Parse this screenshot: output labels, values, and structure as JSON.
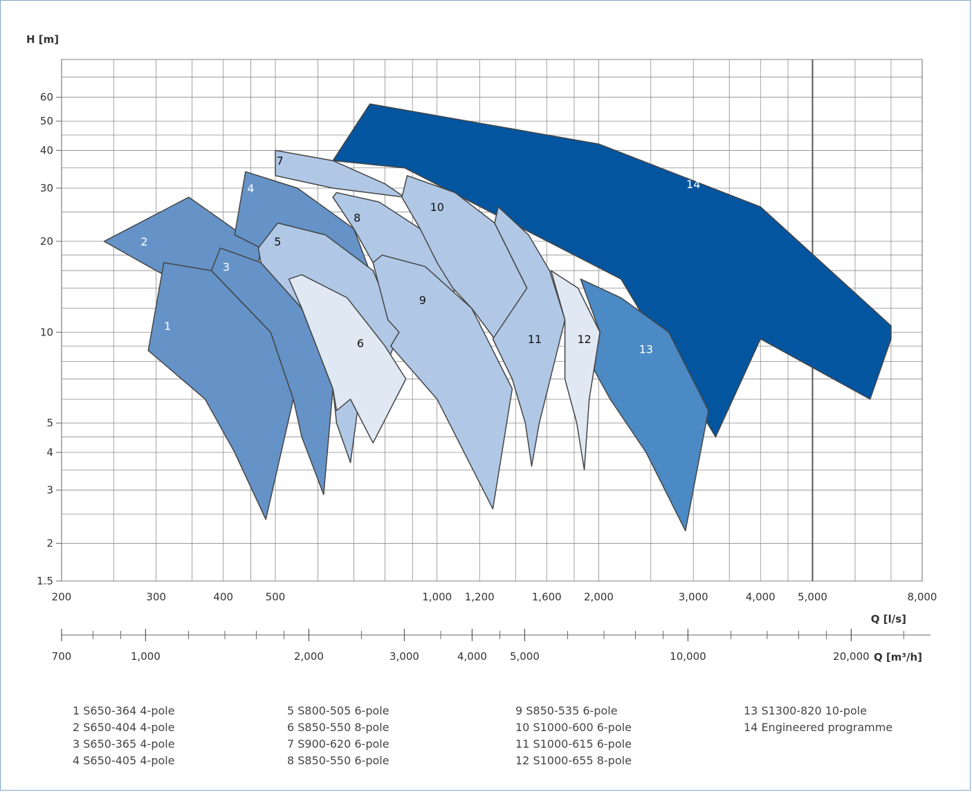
{
  "chart_data": {
    "type": "area",
    "ylabel": "H [m]",
    "xlabel": "Q [l/s]",
    "x2label": "Q [m³/h]",
    "x_scale": "log",
    "y_scale": "log",
    "xlim": [
      200,
      8000
    ],
    "ylim": [
      1.5,
      80
    ],
    "grid": true,
    "y_ticks": [
      {
        "value": 1.5,
        "label": "1.5"
      },
      {
        "value": 2,
        "label": "2"
      },
      {
        "value": 3,
        "label": "3"
      },
      {
        "value": 4,
        "label": "4"
      },
      {
        "value": 5,
        "label": "5"
      },
      {
        "value": 10,
        "label": "10"
      },
      {
        "value": 20,
        "label": "20"
      },
      {
        "value": 30,
        "label": "30"
      },
      {
        "value": 40,
        "label": "40"
      },
      {
        "value": 50,
        "label": "50"
      },
      {
        "value": 60,
        "label": "60"
      }
    ],
    "y_grid": [
      1.5,
      2,
      2.5,
      3,
      3.5,
      4,
      4.5,
      5,
      6,
      7,
      8,
      9,
      10,
      12,
      14,
      16,
      18,
      20,
      25,
      30,
      35,
      40,
      45,
      50,
      60,
      70,
      80
    ],
    "x_ticks": [
      {
        "value": 200,
        "label": "200"
      },
      {
        "value": 300,
        "label": "300"
      },
      {
        "value": 400,
        "label": "400"
      },
      {
        "value": 500,
        "label": "500"
      },
      {
        "value": 1000,
        "label": "1,000"
      },
      {
        "value": 1200,
        "label": "1,200"
      },
      {
        "value": 1600,
        "label": "1,600"
      },
      {
        "value": 2000,
        "label": "2,000"
      },
      {
        "value": 3000,
        "label": "3,000"
      },
      {
        "value": 4000,
        "label": "4,000"
      },
      {
        "value": 5000,
        "label": "5,000"
      },
      {
        "value": 8000,
        "label": "8,000"
      }
    ],
    "x_grid": [
      250,
      300,
      350,
      400,
      450,
      500,
      600,
      700,
      800,
      900,
      1000,
      1200,
      1400,
      1600,
      1800,
      2000,
      2500,
      3000,
      3500,
      4000,
      4500,
      5000,
      6000,
      7000
    ],
    "x2_ticks": [
      {
        "value": 700,
        "label": "700"
      },
      {
        "value": 1000,
        "label": "1,000"
      },
      {
        "value": 2000,
        "label": "2,000"
      },
      {
        "value": 3000,
        "label": "3,000"
      },
      {
        "value": 4000,
        "label": "4,000"
      },
      {
        "value": 5000,
        "label": "5,000"
      },
      {
        "value": 10000,
        "label": "10,000"
      },
      {
        "value": 20000,
        "label": "20,000"
      }
    ],
    "x2_minor": [
      700,
      800,
      900,
      1000,
      1200,
      1400,
      1600,
      1800,
      2000,
      2500,
      3000,
      3500,
      4000,
      4500,
      5000,
      6000,
      7000,
      8000,
      9000,
      10000,
      12000,
      14000,
      16000,
      18000,
      20000,
      25000
    ],
    "colors": {
      "dark_blue": "#04559f",
      "mid_blue": "#6593c8",
      "steel_blue": "#4b8ac4",
      "light_blue": "#b0c8e6",
      "pale_blue": "#dfe8f3",
      "outline": "#444444"
    },
    "regions": [
      {
        "id": "14",
        "color": "dark_blue",
        "label_color": "#ffffff",
        "label_at": [
          3000,
          31
        ],
        "points": [
          [
            750,
            57
          ],
          [
            2000,
            42
          ],
          [
            4000,
            26
          ],
          [
            7000,
            10.5
          ],
          [
            7000,
            9.5
          ],
          [
            6400,
            6
          ],
          [
            4000,
            9.5
          ],
          [
            3300,
            4.5
          ],
          [
            2200,
            15
          ],
          [
            870,
            35
          ],
          [
            640,
            37
          ]
        ]
      },
      {
        "id": "2",
        "color": "mid_blue",
        "label_color": "#ffffff",
        "label_at": [
          285,
          20
        ],
        "points": [
          [
            240,
            20
          ],
          [
            345,
            28
          ],
          [
            470,
            19
          ],
          [
            460,
            15
          ],
          [
            345,
            14
          ],
          [
            300,
            16
          ]
        ]
      },
      {
        "id": "1",
        "color": "mid_blue",
        "label_color": "#ffffff",
        "label_at": [
          315,
          10.5
        ],
        "points": [
          [
            310,
            17
          ],
          [
            380,
            16
          ],
          [
            490,
            10
          ],
          [
            540,
            6
          ],
          [
            480,
            2.4
          ],
          [
            420,
            4
          ],
          [
            370,
            6
          ],
          [
            290,
            8.7
          ]
        ]
      },
      {
        "id": "3",
        "color": "mid_blue",
        "label_color": "#ffffff",
        "label_at": [
          405,
          16.5
        ],
        "points": [
          [
            395,
            19
          ],
          [
            470,
            17
          ],
          [
            560,
            12
          ],
          [
            640,
            6.5
          ],
          [
            615,
            2.9
          ],
          [
            560,
            4.5
          ],
          [
            540,
            6
          ],
          [
            490,
            10
          ],
          [
            380,
            16
          ]
        ]
      },
      {
        "id": "4",
        "color": "mid_blue",
        "label_color": "#ffffff",
        "label_at": [
          450,
          30
        ],
        "points": [
          [
            440,
            34
          ],
          [
            550,
            30
          ],
          [
            700,
            22
          ],
          [
            810,
            11
          ],
          [
            700,
            8
          ],
          [
            470,
            19
          ],
          [
            420,
            21
          ]
        ]
      },
      {
        "id": "5",
        "color": "light_blue",
        "label_color": "#111111",
        "label_at": [
          505,
          20
        ],
        "points": [
          [
            505,
            23
          ],
          [
            620,
            21
          ],
          [
            760,
            16
          ],
          [
            850,
            10
          ],
          [
            810,
            8
          ],
          [
            720,
            6.5
          ],
          [
            690,
            3.7
          ],
          [
            650,
            5
          ],
          [
            640,
            6.5
          ],
          [
            560,
            12
          ],
          [
            470,
            17
          ],
          [
            465,
            19
          ]
        ]
      },
      {
        "id": "6",
        "color": "pale_blue",
        "label_color": "#111111",
        "label_at": [
          720,
          9.2
        ],
        "points": [
          [
            560,
            15.5
          ],
          [
            680,
            13
          ],
          [
            800,
            9
          ],
          [
            875,
            7
          ],
          [
            760,
            4.3
          ],
          [
            690,
            6
          ],
          [
            650,
            5.5
          ],
          [
            640,
            6.5
          ],
          [
            560,
            12
          ],
          [
            530,
            15
          ]
        ]
      },
      {
        "id": "7",
        "color": "light_blue",
        "label_color": "#111111",
        "label_at": [
          510,
          37
        ],
        "points": [
          [
            500,
            40
          ],
          [
            640,
            37
          ],
          [
            800,
            31
          ],
          [
            870,
            28
          ],
          [
            640,
            30
          ],
          [
            500,
            33
          ]
        ]
      },
      {
        "id": "8",
        "color": "light_blue",
        "label_color": "#111111",
        "label_at": [
          710,
          24
        ],
        "points": [
          [
            650,
            29
          ],
          [
            780,
            27
          ],
          [
            930,
            22
          ],
          [
            1130,
            14
          ],
          [
            960,
            13
          ],
          [
            760,
            17
          ],
          [
            700,
            22
          ],
          [
            640,
            28
          ]
        ]
      },
      {
        "id": "9",
        "color": "light_blue",
        "label_color": "#111111",
        "label_at": [
          940,
          12.8
        ],
        "points": [
          [
            790,
            18
          ],
          [
            950,
            16.5
          ],
          [
            1160,
            12
          ],
          [
            1380,
            6.5
          ],
          [
            1270,
            2.6
          ],
          [
            1000,
            6
          ],
          [
            820,
            9
          ],
          [
            850,
            10
          ],
          [
            810,
            11
          ],
          [
            760,
            17
          ]
        ]
      },
      {
        "id": "10",
        "color": "light_blue",
        "label_color": "#111111",
        "label_at": [
          1000,
          26
        ],
        "points": [
          [
            880,
            33
          ],
          [
            1080,
            29
          ],
          [
            1280,
            23
          ],
          [
            1470,
            14
          ],
          [
            1280,
            9.5
          ],
          [
            1160,
            12
          ],
          [
            1070,
            14
          ],
          [
            1000,
            17
          ],
          [
            930,
            22
          ],
          [
            860,
            28
          ]
        ]
      },
      {
        "id": "11",
        "color": "light_blue",
        "label_color": "#111111",
        "label_at": [
          1520,
          9.5
        ],
        "points": [
          [
            1300,
            26
          ],
          [
            1480,
            21
          ],
          [
            1620,
            16
          ],
          [
            1730,
            11
          ],
          [
            1550,
            5
          ],
          [
            1500,
            3.6
          ],
          [
            1460,
            5
          ],
          [
            1380,
            7
          ],
          [
            1270,
            9.5
          ],
          [
            1470,
            14
          ],
          [
            1280,
            23
          ]
        ]
      },
      {
        "id": "12",
        "color": "pale_blue",
        "label_color": "#111111",
        "label_at": [
          1880,
          9.5
        ],
        "points": [
          [
            1630,
            16
          ],
          [
            1830,
            14
          ],
          [
            2010,
            10
          ],
          [
            1920,
            6
          ],
          [
            1880,
            3.5
          ],
          [
            1820,
            5
          ],
          [
            1730,
            7
          ],
          [
            1730,
            11
          ]
        ]
      },
      {
        "id": "13",
        "color": "steel_blue",
        "label_color": "#ffffff",
        "label_at": [
          2450,
          8.8
        ],
        "points": [
          [
            1850,
            15
          ],
          [
            2200,
            13
          ],
          [
            2700,
            10
          ],
          [
            3200,
            5.5
          ],
          [
            2900,
            2.2
          ],
          [
            2450,
            4
          ],
          [
            2100,
            6
          ],
          [
            1960,
            7.5
          ],
          [
            2010,
            10
          ]
        ]
      }
    ]
  },
  "legend": [
    [
      "1  S650-364 4-pole",
      "2  S650-404 4-pole",
      "3  S650-365 4-pole",
      "4  S650-405 4-pole"
    ],
    [
      "5  S800-505 6-pole",
      "6  S850-550 8-pole",
      "7  S900-620 6-pole",
      "8  S850-550 6-pole"
    ],
    [
      "9  S850-535 6-pole",
      "10  S1000-600 6-pole",
      "11  S1000-615 6-pole",
      "12  S1000-655 8-pole"
    ],
    [
      "13  S1300-820 10-pole",
      "14  Engineered programme"
    ]
  ]
}
